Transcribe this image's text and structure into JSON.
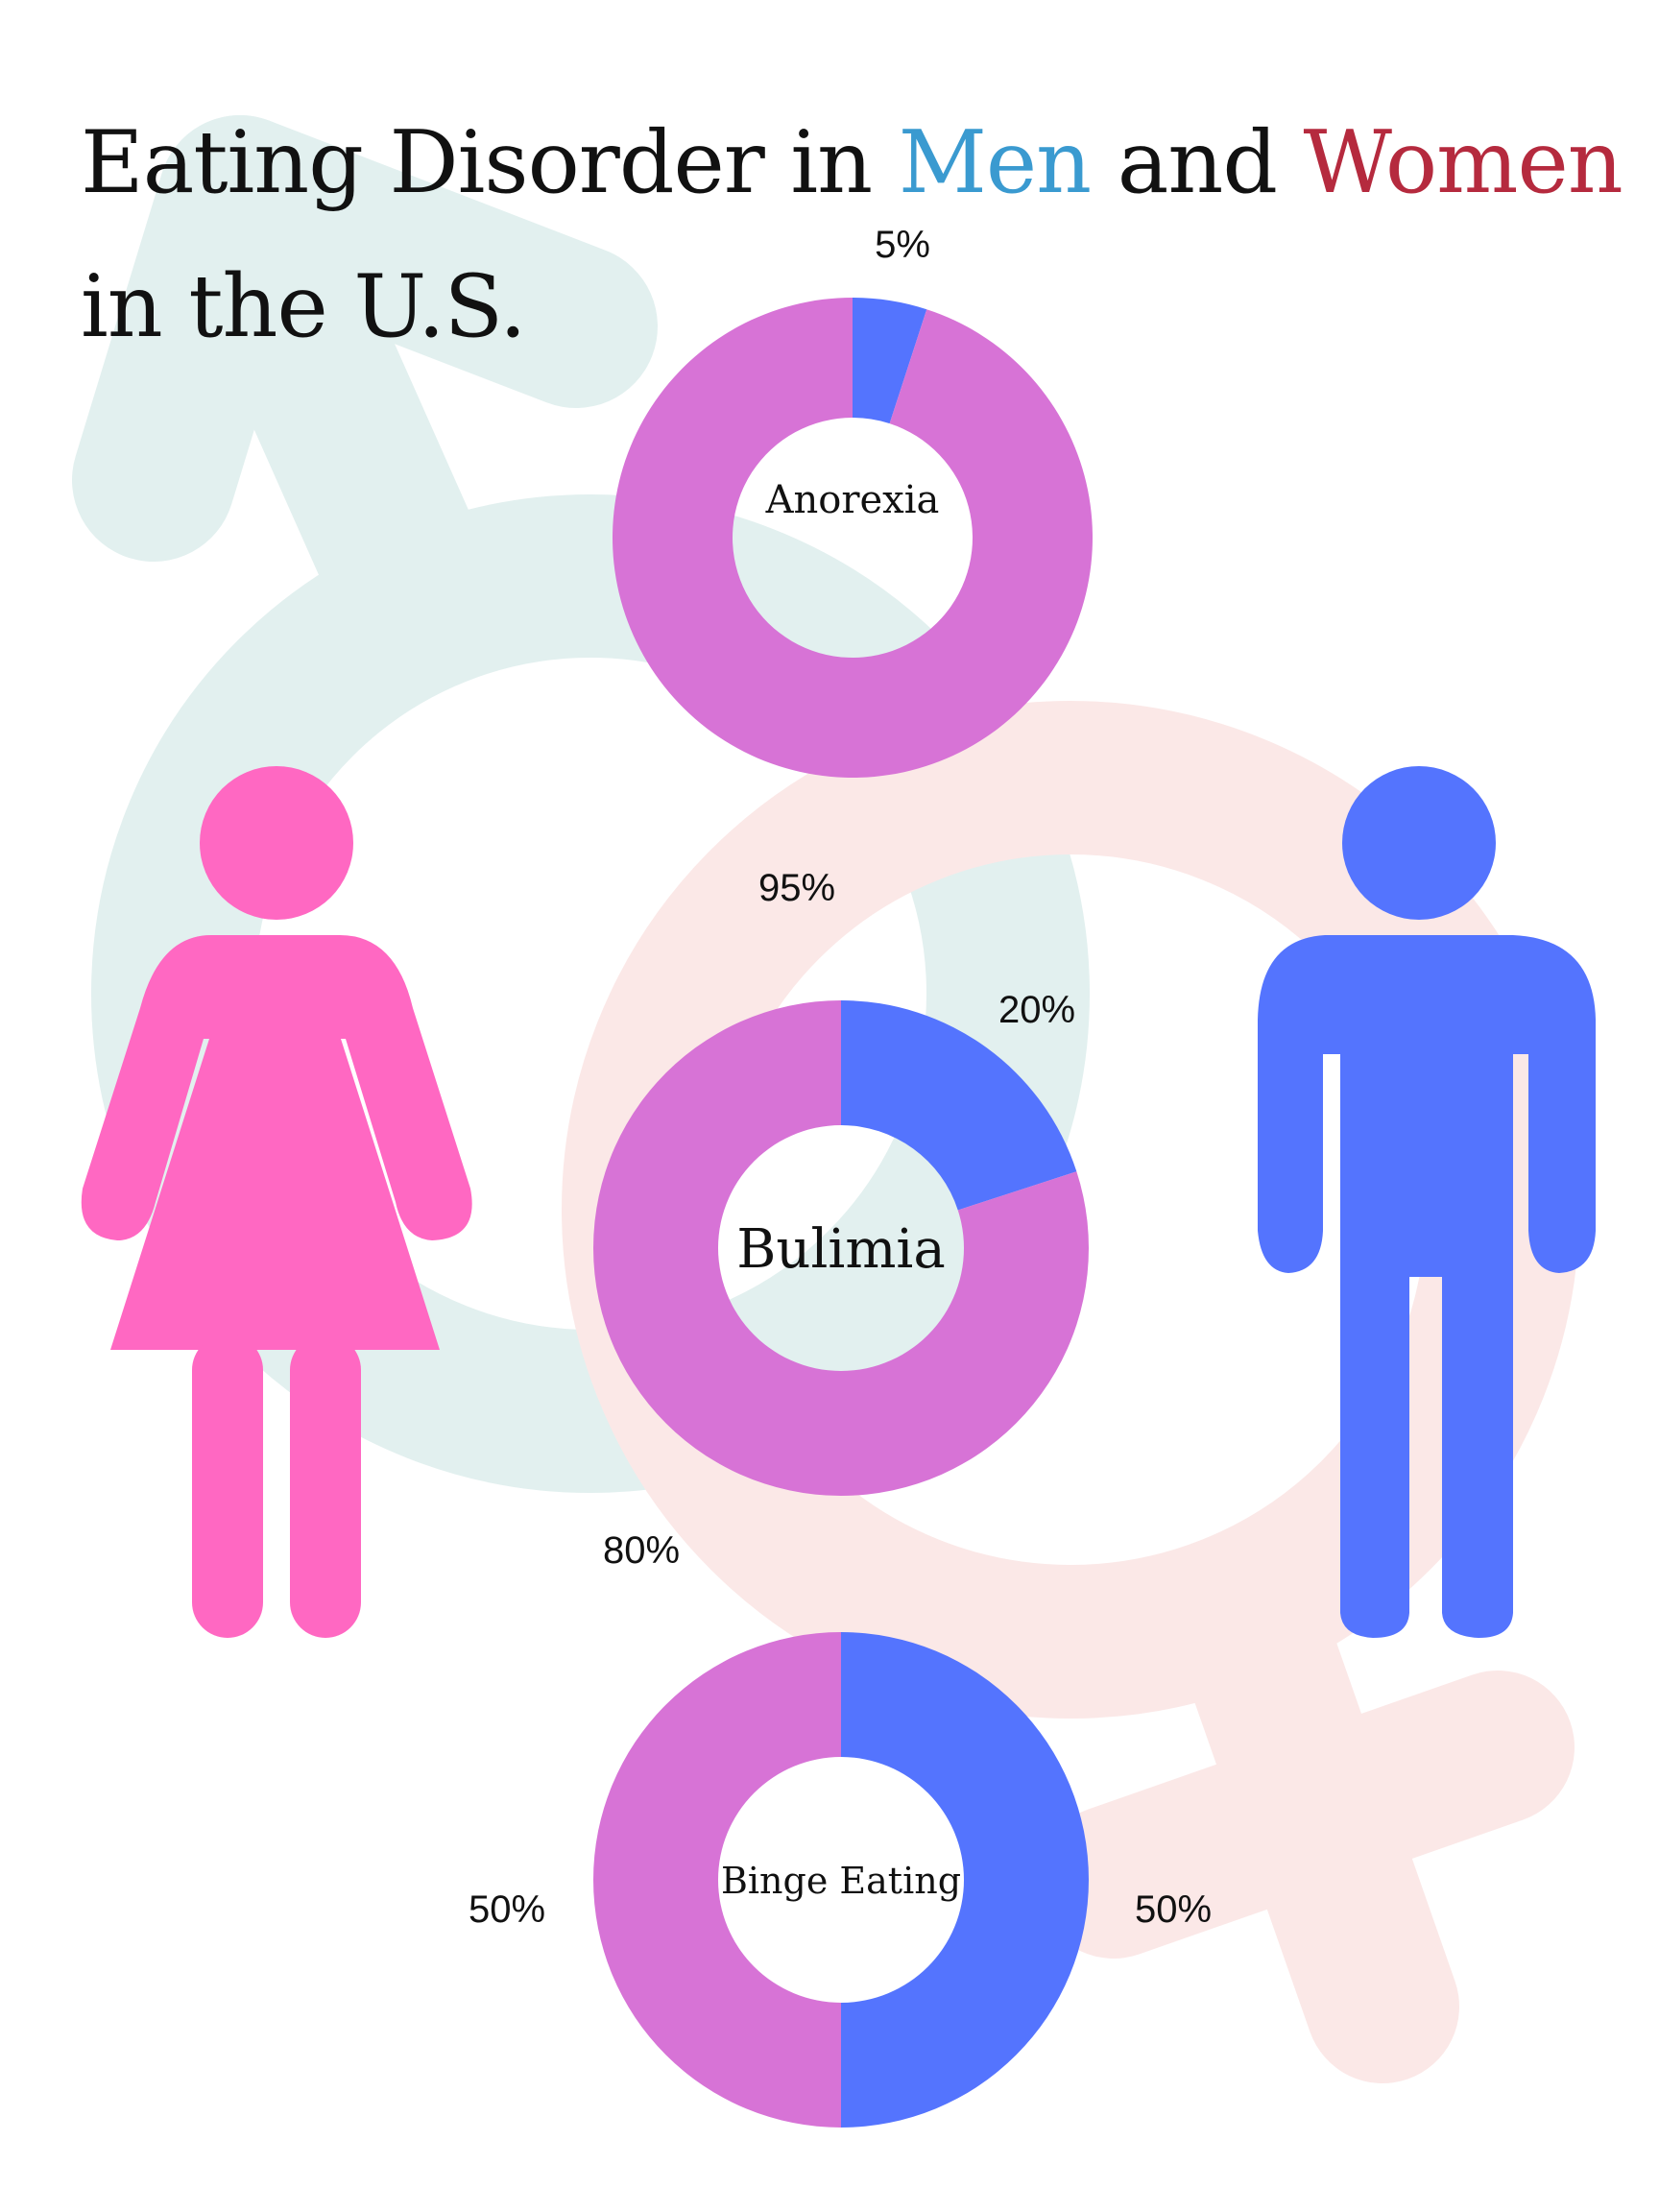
{
  "title": {
    "part1": "Eating Disorder in ",
    "men": "Men",
    "part2": " and ",
    "women": "Women",
    "part3": " in the U.S."
  },
  "colors": {
    "men": "#5474fe",
    "women": "#d773d6",
    "men_title": "#3a9ad0",
    "women_title": "#b52a3e",
    "female_figure": "#ff68c2",
    "male_figure": "#5474fe",
    "male_symbol_bg": "#e2f0ef",
    "female_symbol_bg": "#fbe8e7"
  },
  "icons": [
    "male-symbol-icon",
    "female-symbol-icon",
    "woman-figure-icon",
    "man-figure-icon"
  ],
  "chart_data": [
    {
      "type": "pie",
      "variant": "donut",
      "center_label": "Anorexia",
      "slices": [
        {
          "group": "men",
          "value": 5,
          "label": "5%"
        },
        {
          "group": "women",
          "value": 95,
          "label": "95%"
        }
      ]
    },
    {
      "type": "pie",
      "variant": "donut",
      "center_label": "Bulimia",
      "slices": [
        {
          "group": "men",
          "value": 20,
          "label": "20%"
        },
        {
          "group": "women",
          "value": 80,
          "label": "80%"
        }
      ]
    },
    {
      "type": "pie",
      "variant": "donut",
      "center_label": "Binge Eating",
      "slices": [
        {
          "group": "men",
          "value": 50,
          "label": "50%"
        },
        {
          "group": "women",
          "value": 50,
          "label": "50%"
        }
      ]
    }
  ]
}
